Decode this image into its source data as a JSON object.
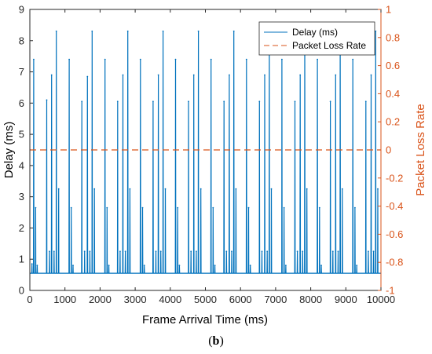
{
  "caption": {
    "open": "(",
    "label": "b",
    "close": ")"
  },
  "chart_data": {
    "type": "line",
    "xlabel": "Frame Arrival Time (ms)",
    "ylabel_left": "Delay (ms)",
    "ylabel_right": "Packet Loss Rate",
    "xlim": [
      0,
      10000
    ],
    "ylim_left": [
      0,
      9
    ],
    "ylim_right": [
      -1,
      1
    ],
    "xticks": [
      "0",
      "1000",
      "2000",
      "3000",
      "4000",
      "5000",
      "6000",
      "7000",
      "8000",
      "9000",
      "10000"
    ],
    "yticks_left": [
      "0",
      "1",
      "2",
      "3",
      "4",
      "5",
      "6",
      "7",
      "8",
      "9"
    ],
    "yticks_right": [
      "-1",
      "-0.8",
      "-0.6",
      "-0.4",
      "-0.2",
      "0",
      "0.2",
      "0.4",
      "0.6",
      "0.8",
      "1"
    ],
    "grid": false,
    "legend_position": "top-right",
    "colors": {
      "delay": "#0072BD",
      "loss": "#D95319",
      "right_axis": "#D95319"
    },
    "baseline_delay": 0.55,
    "series": [
      {
        "name": "Delay (ms)",
        "axis": "left",
        "style": "solid",
        "peaks": [
          [
            60,
            0.85
          ],
          [
            110,
            7.4
          ],
          [
            165,
            2.65
          ],
          [
            210,
            0.8
          ],
          [
            480,
            6.1
          ],
          [
            560,
            1.25
          ],
          [
            620,
            6.9
          ],
          [
            690,
            1.25
          ],
          [
            755,
            8.3
          ],
          [
            820,
            3.25
          ],
          [
            1120,
            7.4
          ],
          [
            1180,
            2.65
          ],
          [
            1230,
            0.8
          ],
          [
            1480,
            6.05
          ],
          [
            1560,
            1.25
          ],
          [
            1640,
            6.85
          ],
          [
            1710,
            1.25
          ],
          [
            1775,
            8.3
          ],
          [
            1840,
            3.25
          ],
          [
            2140,
            7.4
          ],
          [
            2200,
            2.65
          ],
          [
            2250,
            0.8
          ],
          [
            2500,
            6.05
          ],
          [
            2570,
            1.25
          ],
          [
            2650,
            6.9
          ],
          [
            2720,
            1.25
          ],
          [
            2790,
            8.3
          ],
          [
            2850,
            3.25
          ],
          [
            3150,
            7.4
          ],
          [
            3210,
            2.65
          ],
          [
            3260,
            0.8
          ],
          [
            3510,
            6.05
          ],
          [
            3590,
            1.25
          ],
          [
            3660,
            6.9
          ],
          [
            3730,
            1.25
          ],
          [
            3795,
            8.3
          ],
          [
            3860,
            3.25
          ],
          [
            4150,
            7.4
          ],
          [
            4210,
            2.65
          ],
          [
            4260,
            0.8
          ],
          [
            4520,
            6.05
          ],
          [
            4590,
            1.25
          ],
          [
            4670,
            6.9
          ],
          [
            4740,
            1.25
          ],
          [
            4800,
            8.3
          ],
          [
            4870,
            3.25
          ],
          [
            5160,
            7.4
          ],
          [
            5220,
            2.65
          ],
          [
            5270,
            0.8
          ],
          [
            5530,
            6.05
          ],
          [
            5600,
            1.25
          ],
          [
            5680,
            6.9
          ],
          [
            5750,
            1.25
          ],
          [
            5810,
            8.3
          ],
          [
            5870,
            3.25
          ],
          [
            6170,
            7.4
          ],
          [
            6230,
            2.65
          ],
          [
            6280,
            0.8
          ],
          [
            6540,
            6.05
          ],
          [
            6610,
            1.25
          ],
          [
            6690,
            6.9
          ],
          [
            6760,
            1.25
          ],
          [
            6820,
            8.3
          ],
          [
            6880,
            3.25
          ],
          [
            7180,
            7.4
          ],
          [
            7240,
            2.65
          ],
          [
            7290,
            0.8
          ],
          [
            7550,
            6.05
          ],
          [
            7620,
            1.25
          ],
          [
            7700,
            6.9
          ],
          [
            7770,
            1.25
          ],
          [
            7830,
            8.3
          ],
          [
            7890,
            3.25
          ],
          [
            8190,
            7.4
          ],
          [
            8250,
            2.65
          ],
          [
            8300,
            0.8
          ],
          [
            8560,
            6.05
          ],
          [
            8630,
            1.25
          ],
          [
            8710,
            6.9
          ],
          [
            8780,
            1.25
          ],
          [
            8840,
            8.3
          ],
          [
            8900,
            3.25
          ],
          [
            9200,
            7.4
          ],
          [
            9260,
            2.65
          ],
          [
            9310,
            0.8
          ],
          [
            9570,
            6.05
          ],
          [
            9640,
            1.25
          ],
          [
            9720,
            6.9
          ],
          [
            9790,
            1.25
          ],
          [
            9850,
            8.3
          ],
          [
            9910,
            3.25
          ]
        ]
      },
      {
        "name": "Packet Loss Rate",
        "axis": "right",
        "style": "dashed",
        "x": [
          0,
          10000
        ],
        "values": [
          0,
          0
        ]
      }
    ]
  }
}
